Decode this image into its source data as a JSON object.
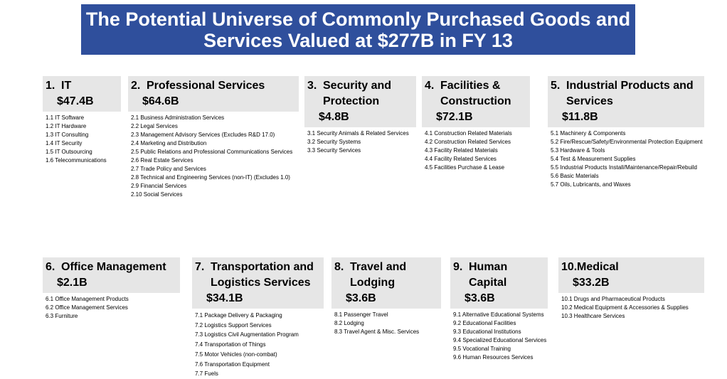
{
  "title": "The Potential Universe of Commonly Purchased Goods and Services  Valued at $277B in FY 13",
  "categories": [
    {
      "number": "1.",
      "name": "IT",
      "amount": "$47.4B",
      "items": [
        "1.1 IT Software",
        "1.2 IT Hardware",
        "1.3 IT Consulting",
        "1.4 IT Security",
        "1.5 IT Outsourcing",
        "1.6 Telecommunications"
      ]
    },
    {
      "number": "2.",
      "name": "Professional Services",
      "amount": "$64.6B",
      "items": [
        "2.1 Business Administration Services",
        "2.2 Legal Services",
        "2.3 Management Advisory Services (Excludes R&D 17.0)",
        "2.4 Marketing and Distribution",
        "2.5 Public Relations and Professional Communications Services",
        "2.6 Real Estate Services",
        "2.7 Trade Policy and Services",
        "2.8 Technical and Engineering Services (non-IT) (Excludes 1.0)",
        "2.9 Financial Services",
        "2.10 Social Services"
      ]
    },
    {
      "number": "3.",
      "name": "Security and Protection",
      "amount": "$4.8B",
      "items": [
        "3.1 Security Animals & Related Services",
        "3.2 Security Systems",
        "3.3 Security Services"
      ]
    },
    {
      "number": "4.",
      "name": "Facilities & Construction",
      "amount": "$72.1B",
      "items": [
        "4.1 Construction Related Materials",
        "4.2 Construction Related Services",
        "4.3 Facility Related Materials",
        "4.4 Facility Related Services",
        "4.5 Facilities Purchase & Lease"
      ]
    },
    {
      "number": "5.",
      "name": "Industrial Products and Services",
      "amount": "$11.8B",
      "items": [
        "5.1 Machinery & Components",
        "5.2 Fire/Rescue/Safety/Environmental Protection Equipment",
        "5.3 Hardware & Tools",
        "5.4 Test & Measurement Supplies",
        "5.5 Industrial Products Install/Maintenance/Repair/Rebuild",
        "5.6 Basic Materials",
        "5.7 Oils, Lubricants, and Waxes"
      ]
    },
    {
      "number": "6.",
      "name": "Office Management",
      "amount": "$2.1B",
      "items": [
        "6.1 Office Management Products",
        "6.2 Office Management Services",
        "6.3 Furniture"
      ]
    },
    {
      "number": "7.",
      "name": "Transportation and Logistics Services",
      "amount": "$34.1B",
      "items": [
        "7.1 Package Delivery & Packaging",
        "7.2 Logistics  Support Services",
        "7.3 Logistics Civil Augmentation Program",
        "7.4 Transportation of Things",
        "7.5 Motor Vehicles (non-combat)",
        "7.6 Transportation Equipment",
        "7.7 Fuels"
      ]
    },
    {
      "number": "8.",
      "name": "Travel and Lodging",
      "amount": "$3.6B",
      "items": [
        "8.1 Passenger Travel",
        "8.2 Lodging",
        "8.3 Travel Agent & Misc. Services"
      ]
    },
    {
      "number": "9.",
      "name": "Human Capital",
      "amount": "$3.6B",
      "items": [
        "9.1 Alternative Educational Systems",
        "9.2 Educational Facilities",
        "9.3 Educational Institutions",
        "9.4 Specialized Educational Services",
        "9.5 Vocational Training",
        "9.6 Human Resources Services"
      ]
    },
    {
      "number": "10.",
      "name": "Medical",
      "amount": "$33.2B",
      "items": [
        "10.1 Drugs and Pharmaceutical Products",
        "10.2 Medical Equipment & Accessories & Supplies",
        "10.3 Healthcare Services"
      ]
    }
  ]
}
